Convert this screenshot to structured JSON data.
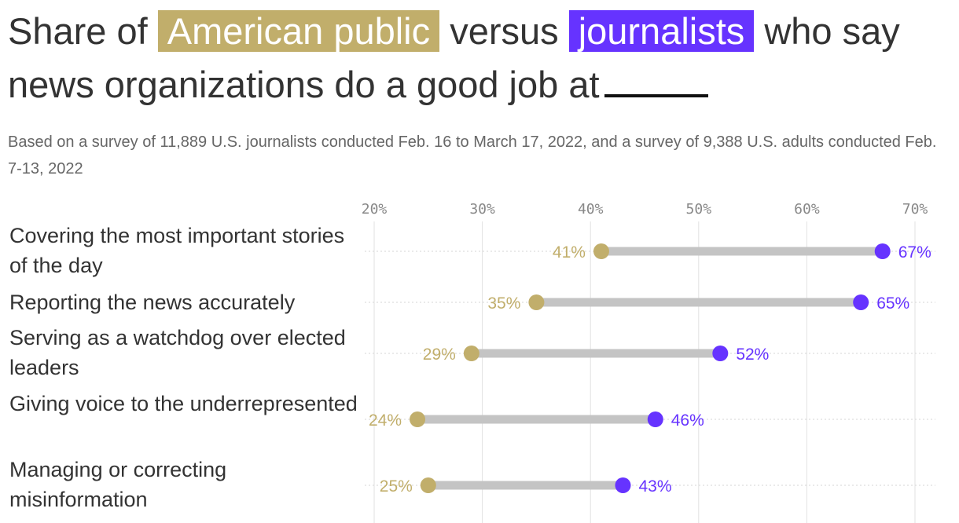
{
  "title": {
    "part1": "Share of",
    "public_label": "American public",
    "part2": "versus",
    "journalists_label": "journalists",
    "part3": "who say news organizations do a good job at"
  },
  "subtitle": "Based on a survey of 11,889 U.S. journalists conducted Feb. 16 to March 17, 2022, and a survey of 9,388 U.S. adults conducted Feb. 7-13, 2022",
  "colors": {
    "public": "#c1ae6b",
    "journalists": "#6633ff",
    "connector": "#c4c4c4",
    "grid": "#e2e2e2"
  },
  "chart_data": {
    "type": "dumbbell",
    "x_ticks": [
      "20%",
      "30%",
      "40%",
      "50%",
      "60%",
      "70%"
    ],
    "xlim": [
      20,
      70
    ],
    "grid": true,
    "categories": [
      "Covering the most important stories of the day",
      "Reporting the news accurately",
      "Serving as a watchdog over elected leaders",
      "Giving voice to the underrepresented",
      "Managing or correcting misinformation"
    ],
    "series": [
      {
        "name": "American public",
        "values": [
          41,
          35,
          29,
          24,
          25
        ],
        "labels": [
          "41%",
          "35%",
          "29%",
          "24%",
          "25%"
        ]
      },
      {
        "name": "journalists",
        "values": [
          67,
          65,
          52,
          46,
          43
        ],
        "labels": [
          "67%",
          "65%",
          "52%",
          "46%",
          "43%"
        ]
      }
    ]
  }
}
